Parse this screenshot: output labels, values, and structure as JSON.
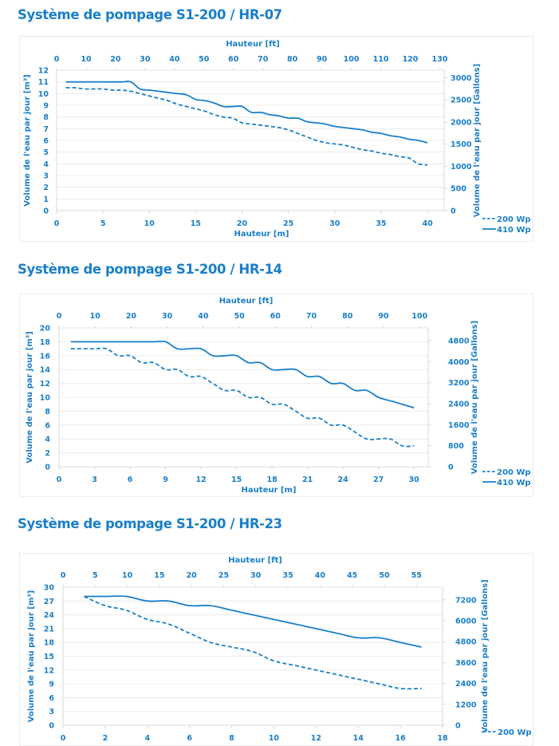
{
  "page": {
    "sections": [
      {
        "title": "Système de pompage S1-200 / HR-07"
      },
      {
        "title": "Système de pompage S1-200 / HR-14"
      },
      {
        "title": "Système de pompage S1-200 / HR-23"
      }
    ]
  },
  "colors": {
    "accent": "#1a7fc8",
    "grid": "#ececec",
    "axis": "#d9d9d9"
  },
  "chart_data": [
    {
      "type": "line",
      "title": "Système de pompage S1-200 / HR-07",
      "xlabel": "Hauteur [m]",
      "x2label": "Hauteur [ft]",
      "ylabel": "Volume de l'eau par jour [m³]",
      "y2label": "Volume de l'eau par jour [Gallons]",
      "xlim": [
        0,
        41.8
      ],
      "ylim": [
        0,
        12
      ],
      "x_ticks": [
        0,
        5,
        10,
        15,
        20,
        25,
        30,
        35,
        40
      ],
      "y_ticks": [
        0,
        1,
        2,
        3,
        4,
        5,
        6,
        7,
        8,
        9,
        10,
        11,
        12
      ],
      "x2_ticks": [
        0,
        10,
        20,
        30,
        40,
        50,
        60,
        70,
        80,
        90,
        100,
        110,
        120,
        130
      ],
      "x2_lim_ft": [
        0,
        131.5
      ],
      "y2_ticks": [
        0,
        500,
        1000,
        1500,
        2000,
        2500,
        3000
      ],
      "y2_lim": [
        0,
        3170
      ],
      "grid": true,
      "legend": "bottom-right",
      "series": [
        {
          "name": "200 Wp",
          "style": "dashed",
          "x": [
            1,
            2,
            3,
            4,
            5,
            6,
            7,
            8,
            9,
            10,
            11,
            12,
            13,
            14,
            15,
            16,
            17,
            18,
            19,
            20,
            21,
            22,
            23,
            24,
            25,
            26,
            27,
            28,
            29,
            30,
            31,
            32,
            33,
            34,
            35,
            36,
            37,
            38,
            39,
            40
          ],
          "values": [
            10.5,
            10.5,
            10.4,
            10.4,
            10.4,
            10.3,
            10.3,
            10.2,
            10.0,
            9.8,
            9.6,
            9.4,
            9.1,
            8.9,
            8.7,
            8.5,
            8.2,
            8.0,
            7.9,
            7.5,
            7.4,
            7.3,
            7.2,
            7.1,
            6.9,
            6.6,
            6.3,
            6.0,
            5.8,
            5.7,
            5.6,
            5.4,
            5.2,
            5.1,
            4.9,
            4.8,
            4.6,
            4.5,
            4.0,
            3.9
          ]
        },
        {
          "name": "410 Wp",
          "style": "solid",
          "x": [
            1,
            2,
            3,
            4,
            5,
            6,
            7,
            8,
            9,
            10,
            11,
            12,
            13,
            14,
            15,
            16,
            17,
            18,
            19,
            20,
            21,
            22,
            23,
            24,
            25,
            26,
            27,
            28,
            29,
            30,
            31,
            32,
            33,
            34,
            35,
            36,
            37,
            38,
            39,
            40
          ],
          "values": [
            11.0,
            11.0,
            11.0,
            11.0,
            11.0,
            11.0,
            11.0,
            11.0,
            10.4,
            10.3,
            10.2,
            10.1,
            10.0,
            9.9,
            9.5,
            9.4,
            9.2,
            8.9,
            8.9,
            8.9,
            8.4,
            8.4,
            8.2,
            8.1,
            7.9,
            7.9,
            7.6,
            7.5,
            7.4,
            7.2,
            7.1,
            7.0,
            6.9,
            6.7,
            6.6,
            6.4,
            6.3,
            6.1,
            6.0,
            5.8
          ]
        }
      ]
    },
    {
      "type": "line",
      "title": "Système de pompage S1-200 / HR-14",
      "xlabel": "Hauteur [m]",
      "x2label": "Hauteur [ft]",
      "ylabel": "Volume de l'eau par jour [m³]",
      "y2label": "Volume de l'eau par jour [Gallons]",
      "xlim": [
        0,
        31.2
      ],
      "ylim": [
        0,
        20
      ],
      "x_ticks": [
        0,
        3,
        6,
        9,
        12,
        15,
        18,
        21,
        24,
        27,
        30
      ],
      "y_ticks": [
        0,
        2,
        4,
        6,
        8,
        10,
        12,
        14,
        16,
        18,
        20
      ],
      "x2_ticks": [
        0,
        10,
        20,
        30,
        40,
        50,
        60,
        70,
        80,
        90,
        100
      ],
      "x2_lim_ft": [
        0,
        102.4
      ],
      "y2_ticks": [
        0,
        800,
        1600,
        2400,
        3200,
        4000,
        4800
      ],
      "y2_lim": [
        0,
        5283
      ],
      "grid": true,
      "legend": "bottom-right",
      "series": [
        {
          "name": "200 Wp",
          "style": "dashed",
          "x": [
            1,
            2,
            3,
            4,
            5,
            6,
            7,
            8,
            9,
            10,
            11,
            12,
            13,
            14,
            15,
            16,
            17,
            18,
            19,
            20,
            21,
            22,
            23,
            24,
            25,
            26,
            27,
            28,
            29,
            30
          ],
          "values": [
            17,
            17,
            17,
            17,
            16,
            16,
            15,
            15,
            14,
            14,
            13,
            13,
            12,
            11,
            11,
            10,
            10,
            9,
            9,
            8,
            7,
            7,
            6,
            6,
            5,
            4,
            4,
            4,
            3,
            3
          ]
        },
        {
          "name": "410 Wp",
          "style": "solid",
          "x": [
            1,
            2,
            3,
            4,
            5,
            6,
            7,
            8,
            9,
            10,
            11,
            12,
            13,
            14,
            15,
            16,
            17,
            18,
            19,
            20,
            21,
            22,
            23,
            24,
            25,
            26,
            27,
            28,
            29,
            30
          ],
          "values": [
            18,
            18,
            18,
            18,
            18,
            18,
            18,
            18,
            18,
            17,
            17,
            17,
            16,
            16,
            16,
            15,
            15,
            14,
            14,
            14,
            13,
            13,
            12,
            12,
            11,
            11,
            10,
            9.5,
            9,
            8.5
          ]
        }
      ]
    },
    {
      "type": "line",
      "title": "Système de pompage S1-200 / HR-23",
      "xlabel": "",
      "x2label": "Hauteur [ft]",
      "ylabel": "Volume de l'eau par jour [m³]",
      "y2label": "Volume de l'eau par jour [Gallons]",
      "xlim": [
        0,
        18
      ],
      "ylim": [
        0,
        30
      ],
      "x_ticks": [
        0,
        2,
        4,
        6,
        8,
        10,
        12,
        14,
        16,
        18
      ],
      "y_ticks": [
        0,
        3,
        6,
        9,
        12,
        15,
        18,
        21,
        24,
        27,
        30
      ],
      "x2_ticks": [
        0,
        5,
        10,
        15,
        20,
        25,
        30,
        35,
        40,
        45,
        50,
        55
      ],
      "x2_lim_ft": [
        0,
        59.06
      ],
      "y2_ticks": [
        0,
        1200,
        2400,
        3600,
        4800,
        6000,
        7200
      ],
      "y2_lim": [
        0,
        7925
      ],
      "grid": true,
      "legend": "bottom-right",
      "series": [
        {
          "name": "200 Wp",
          "style": "dashed",
          "x": [
            1,
            2,
            3,
            4,
            5,
            6,
            7,
            8,
            9,
            10,
            11,
            12,
            13,
            14,
            15,
            16,
            17
          ],
          "values": [
            28,
            26,
            25,
            23,
            22,
            20,
            18,
            17,
            16,
            14,
            13,
            12,
            11,
            10,
            9,
            8,
            8
          ]
        },
        {
          "name": "410 Wp",
          "style": "solid",
          "x": [
            1,
            2,
            3,
            4,
            5,
            6,
            7,
            8,
            9,
            10,
            11,
            12,
            13,
            14,
            15,
            16,
            17
          ],
          "values": [
            28,
            28,
            28,
            27,
            27,
            26,
            26,
            25,
            24,
            23,
            22,
            21,
            20,
            19,
            19,
            18,
            17
          ]
        }
      ]
    }
  ],
  "legend_labels": {
    "dashed": "200 Wp",
    "solid": "410 Wp"
  }
}
